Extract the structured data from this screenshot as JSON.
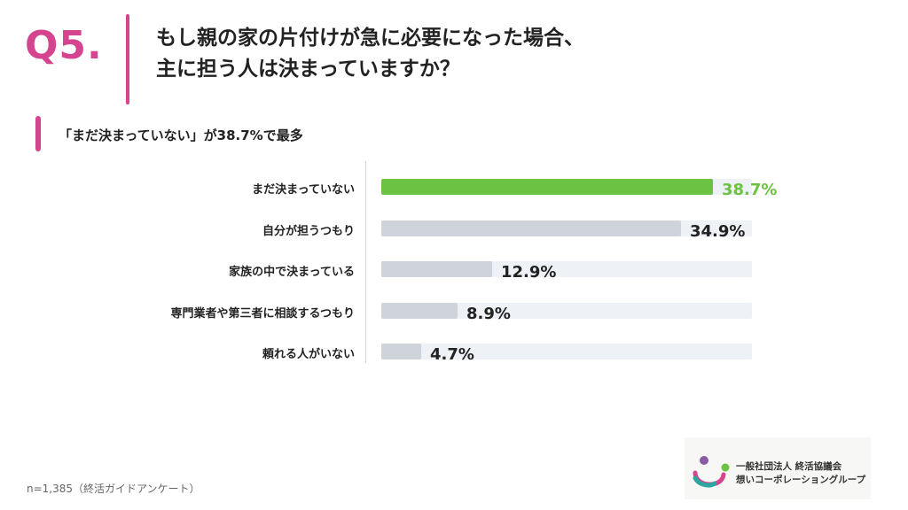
{
  "question": {
    "number": "Q5.",
    "title_line1": "もし親の家の片付けが急に必要になった場合、",
    "title_line2": "主に担う人は決まっていますか？"
  },
  "subtitle": "「まだ決まっていない」が38.7%で最多",
  "chart_data": {
    "type": "bar",
    "orientation": "horizontal",
    "categories": [
      "まだ決まっていない",
      "自分が担うつもり",
      "家族の中で決まっている",
      "専門業者や第三者に相談するつもり",
      "頼れる人がいない"
    ],
    "values": [
      38.7,
      34.9,
      12.9,
      8.9,
      4.7
    ],
    "value_labels": [
      "38.7%",
      "34.9%",
      "12.9%",
      "8.9%",
      "4.7%"
    ],
    "highlight_index": 0,
    "xlim": [
      0,
      40
    ],
    "grid": false,
    "colors": {
      "highlight": "#6cc243",
      "bar": "#cfd3da",
      "track": "#eef1f5"
    }
  },
  "footnote": "n=1,385（終活ガイドアンケート）",
  "logo": {
    "line1": "一般社団法人 終活協議会",
    "line2": "想いコーポレーショングループ",
    "icon": "association-logo-mark"
  },
  "colors": {
    "accent": "#d5448e",
    "highlight": "#6cc243"
  }
}
